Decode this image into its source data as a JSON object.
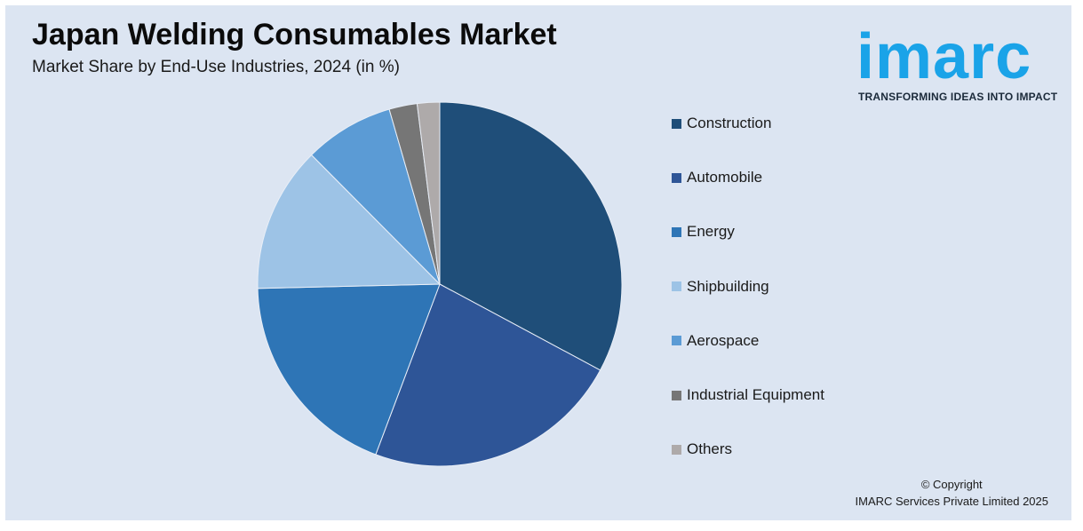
{
  "header": {
    "title": "Japan Welding Consumables Market",
    "subtitle": "Market Share by End-Use Industries, 2024 (in %)"
  },
  "logo": {
    "word": "imarc",
    "tagline": "TRANSFORMING IDEAS INTO IMPACT",
    "color": "#1aa3e8"
  },
  "chart_data": {
    "type": "pie",
    "title": "Japan Welding Consumables Market",
    "subtitle": "Market Share by End-Use Industries, 2024 (in %)",
    "legend_position": "right",
    "start_angle_deg": 0,
    "direction": "clockwise",
    "slices": [
      {
        "name": "Construction",
        "value": 33,
        "color": "#1f4e79"
      },
      {
        "name": "Automobile",
        "value": 23,
        "color": "#2e5597"
      },
      {
        "name": "Energy",
        "value": 19,
        "color": "#2e75b6"
      },
      {
        "name": "Shipbuilding",
        "value": 13,
        "color": "#9dc3e6"
      },
      {
        "name": "Aerospace",
        "value": 8,
        "color": "#5b9bd5"
      },
      {
        "name": "Industrial Equipment",
        "value": 2.5,
        "color": "#767676"
      },
      {
        "name": "Others",
        "value": 2,
        "color": "#aeaaaa"
      }
    ]
  },
  "footer": {
    "copyright_line1": "© Copyright",
    "copyright_line2": "IMARC Services Private Limited 2025"
  }
}
